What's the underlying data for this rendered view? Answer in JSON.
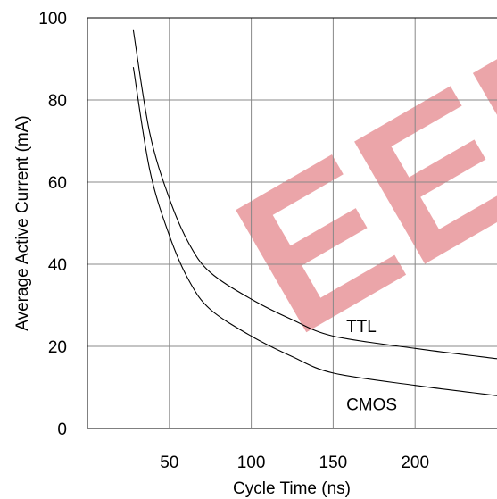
{
  "chart_data": {
    "type": "line",
    "xlabel": "Cycle Time (ns)",
    "ylabel": "Average Active Current (mA)",
    "xlim": [
      0,
      250
    ],
    "ylim": [
      0,
      100
    ],
    "x_ticks": [
      50,
      100,
      150,
      200
    ],
    "y_ticks": [
      0,
      20,
      40,
      60,
      80,
      100
    ],
    "grid": true,
    "series": [
      {
        "name": "TTL",
        "x": [
          28,
          38,
          50,
          62,
          75,
          100,
          125,
          150,
          200,
          250
        ],
        "y": [
          97,
          72,
          56,
          45,
          38,
          31.5,
          26.5,
          22.5,
          19.5,
          17
        ]
      },
      {
        "name": "CMOS",
        "x": [
          28,
          38,
          50,
          62,
          75,
          100,
          125,
          150,
          200,
          250
        ],
        "y": [
          88,
          63,
          47,
          36,
          29,
          22.5,
          17.5,
          13.5,
          10.5,
          8
        ]
      }
    ],
    "annotations": [
      {
        "text": "TTL",
        "x": 158,
        "y": 25
      },
      {
        "text": "CMOS",
        "x": 158,
        "y": 6
      }
    ]
  },
  "colors": {
    "line": "#000000",
    "grid": "#888888",
    "watermark": "#e8959a"
  },
  "watermark": {
    "text": "EEPW"
  }
}
